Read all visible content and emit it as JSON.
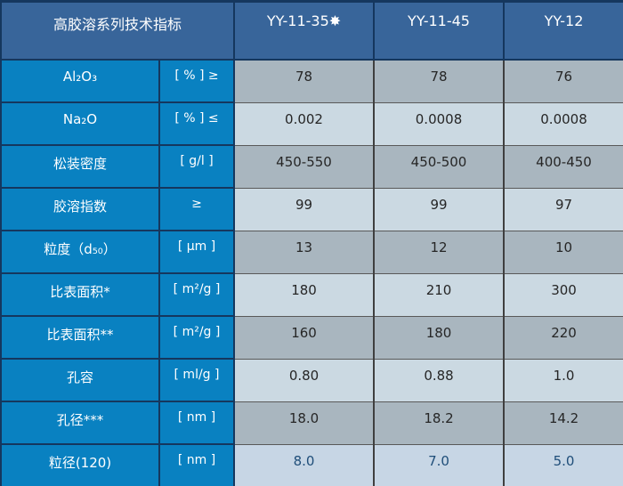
{
  "table": {
    "title": "高胶溶系列技术指标",
    "columns": [
      "YY-11-35✸",
      "YY-11-45",
      "YY-12"
    ],
    "rows": [
      {
        "label": "Al₂O₃",
        "unit": "[ % ] ≥",
        "values": [
          "78",
          "78",
          "76"
        ]
      },
      {
        "label": "Na₂O",
        "unit": "[ % ] ≤",
        "values": [
          "0.002",
          "0.0008",
          "0.0008"
        ]
      },
      {
        "label": "松装密度",
        "unit": "[ g/l ]",
        "values": [
          "450-550",
          "450-500",
          "400-450"
        ]
      },
      {
        "label": "胶溶指数",
        "unit": "≥",
        "values": [
          "99",
          "99",
          "97"
        ]
      },
      {
        "label": "粒度（d₅₀）",
        "unit": "[ μm ]",
        "values": [
          "13",
          "12",
          "10"
        ]
      },
      {
        "label": "比表面积*",
        "unit": "[ m²/g ]",
        "values": [
          "180",
          "210",
          "300"
        ]
      },
      {
        "label": "比表面积**",
        "unit": "[ m²/g ]",
        "values": [
          "160",
          "180",
          "220"
        ]
      },
      {
        "label": "孔容",
        "unit": "[ ml/g ]",
        "values": [
          "0.80",
          "0.88",
          "1.0"
        ]
      },
      {
        "label": "孔径***",
        "unit": "[ nm ]",
        "values": [
          "18.0",
          "18.2",
          "14.2"
        ]
      },
      {
        "label": "粒径(120)",
        "unit": "[ nm ]",
        "values": [
          "8.0",
          "7.0",
          "5.0"
        ]
      }
    ]
  },
  "colors": {
    "header_bg": "#38659A",
    "header_text": "#FFFFFF",
    "label_bg": "#0981C1",
    "label_text": "#FFFFFF",
    "row_gray_bg": "#A9B6BF",
    "row_light_bg": "#CBD9E2",
    "last_row_bg": "#C7D6E5",
    "value_text": "#262626",
    "last_row_value_text": "#1F4E79",
    "border_navy": "#15375E",
    "border_dark": "#3F3F3F",
    "page_bg": "#D8D8D8"
  }
}
